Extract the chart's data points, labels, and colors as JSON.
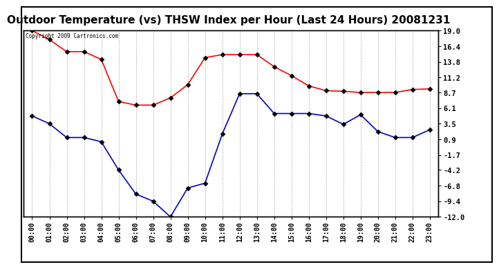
{
  "title": "Outdoor Temperature (vs) THSW Index per Hour (Last 24 Hours) 20081231",
  "copyright_text": "Copyright 2009 Cartronics.com",
  "hours": [
    "00:00",
    "01:00",
    "02:00",
    "03:00",
    "04:00",
    "05:00",
    "06:00",
    "07:00",
    "08:00",
    "09:00",
    "10:00",
    "11:00",
    "12:00",
    "13:00",
    "14:00",
    "15:00",
    "16:00",
    "17:00",
    "18:00",
    "19:00",
    "20:00",
    "21:00",
    "22:00",
    "23:00"
  ],
  "temp_red": [
    19.0,
    17.5,
    15.5,
    15.5,
    14.2,
    7.2,
    6.6,
    6.6,
    7.8,
    10.0,
    14.5,
    15.0,
    15.0,
    15.0,
    13.0,
    11.5,
    9.8,
    9.0,
    8.9,
    8.7,
    8.7,
    8.7,
    9.2,
    9.3
  ],
  "temp_blue": [
    4.8,
    3.5,
    1.2,
    1.2,
    0.5,
    -4.2,
    -8.2,
    -9.4,
    -12.0,
    -7.2,
    -6.4,
    1.8,
    8.5,
    8.5,
    5.2,
    5.2,
    5.2,
    4.8,
    3.4,
    5.0,
    2.2,
    1.2,
    1.2,
    2.5
  ],
  "y_ticks": [
    19.0,
    16.4,
    13.8,
    11.2,
    8.7,
    6.1,
    3.5,
    0.9,
    -1.7,
    -4.2,
    -6.8,
    -9.4,
    -12.0
  ],
  "ylim": [
    -12.0,
    19.0
  ],
  "red_color": "#ff0000",
  "blue_color": "#0000cc",
  "grid_color": "#b0b0b0",
  "bg_color": "#ffffff",
  "title_fontsize": 11,
  "marker_size": 3.5
}
